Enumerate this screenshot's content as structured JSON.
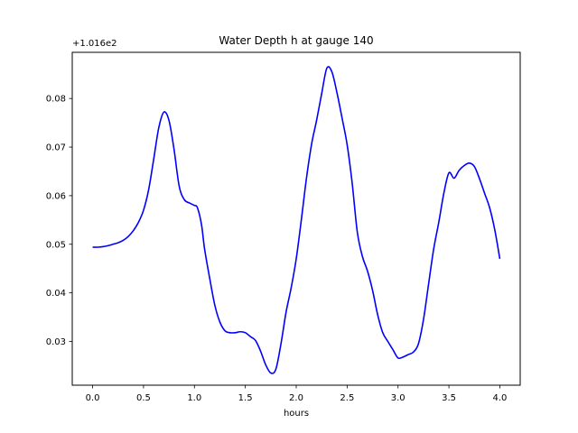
{
  "chart_data": {
    "type": "line",
    "title": "Water Depth h at gauge 140",
    "xlabel": "hours",
    "ylabel": "",
    "y_offset_label": "+1.016e2",
    "y_offset": 101.6,
    "xlim": [
      -0.2,
      4.2
    ],
    "ylim": [
      0.021,
      0.0895
    ],
    "x_ticks": [
      0.0,
      0.5,
      1.0,
      1.5,
      2.0,
      2.5,
      3.0,
      3.5,
      4.0
    ],
    "x_tick_labels": [
      "0.0",
      "0.5",
      "1.0",
      "1.5",
      "2.0",
      "2.5",
      "3.0",
      "3.5",
      "4.0"
    ],
    "y_ticks": [
      0.03,
      0.04,
      0.05,
      0.06,
      0.07,
      0.08
    ],
    "y_tick_labels": [
      "0.03",
      "0.04",
      "0.05",
      "0.06",
      "0.07",
      "0.08"
    ],
    "grid": false,
    "series_color": "#0000ff",
    "series": [
      {
        "x": [
          0.0,
          0.05,
          0.1,
          0.15,
          0.2,
          0.25,
          0.3,
          0.35,
          0.4,
          0.45,
          0.5,
          0.55,
          0.6,
          0.65,
          0.7,
          0.75,
          0.8,
          0.85,
          0.9,
          0.95,
          1.0,
          1.03,
          1.07,
          1.1,
          1.15,
          1.2,
          1.25,
          1.3,
          1.35,
          1.4,
          1.45,
          1.5,
          1.55,
          1.6,
          1.65,
          1.7,
          1.75,
          1.8,
          1.85,
          1.9,
          1.95,
          2.0,
          2.05,
          2.1,
          2.15,
          2.2,
          2.25,
          2.3,
          2.35,
          2.4,
          2.45,
          2.5,
          2.55,
          2.6,
          2.65,
          2.7,
          2.75,
          2.8,
          2.85,
          2.9,
          2.95,
          3.0,
          3.05,
          3.1,
          3.15,
          3.2,
          3.25,
          3.3,
          3.35,
          3.4,
          3.45,
          3.5,
          3.55,
          3.6,
          3.65,
          3.7,
          3.75,
          3.8,
          3.85,
          3.9,
          3.95,
          4.0
        ],
        "y": [
          0.0494,
          0.0494,
          0.0495,
          0.0497,
          0.05,
          0.0503,
          0.0508,
          0.0516,
          0.0528,
          0.0545,
          0.057,
          0.0612,
          0.0675,
          0.074,
          0.0772,
          0.0755,
          0.0695,
          0.062,
          0.0592,
          0.0585,
          0.058,
          0.0575,
          0.054,
          0.049,
          0.043,
          0.0375,
          0.034,
          0.0322,
          0.0318,
          0.0318,
          0.032,
          0.0318,
          0.031,
          0.0302,
          0.028,
          0.0252,
          0.0235,
          0.0243,
          0.0295,
          0.036,
          0.041,
          0.047,
          0.055,
          0.0635,
          0.0705,
          0.0755,
          0.081,
          0.0862,
          0.0855,
          0.0812,
          0.076,
          0.0705,
          0.0625,
          0.0525,
          0.0475,
          0.0445,
          0.0405,
          0.0355,
          0.0318,
          0.03,
          0.0283,
          0.0266,
          0.0268,
          0.0273,
          0.0278,
          0.0295,
          0.0345,
          0.0418,
          0.049,
          0.0545,
          0.0605,
          0.0647,
          0.0636,
          0.0652,
          0.0662,
          0.0667,
          0.066,
          0.0635,
          0.0605,
          0.0575,
          0.053,
          0.047
        ]
      }
    ]
  }
}
